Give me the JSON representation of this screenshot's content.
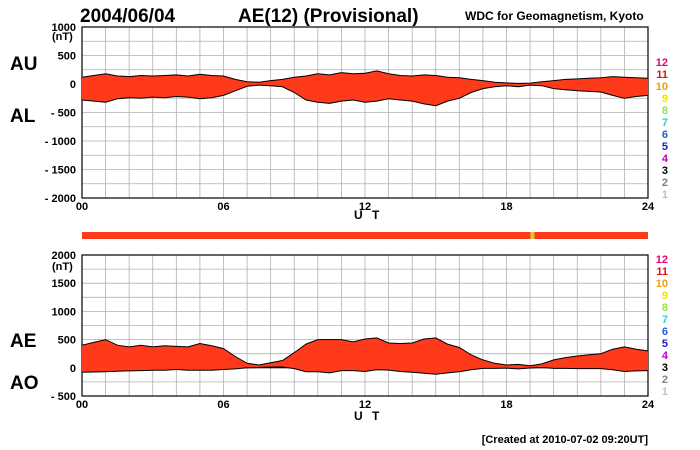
{
  "header": {
    "date": "2004/06/04",
    "title": "AE(12) (Provisional)",
    "source": "WDC for Geomagnetism, Kyoto"
  },
  "footer": {
    "created": "[Created at 2010-07-02 09:20UT]"
  },
  "station_counts": [
    "12",
    "11",
    "10",
    "9",
    "8",
    "7",
    "6",
    "5",
    "4",
    "3",
    "2",
    "1"
  ],
  "station_colors": [
    "#e8007a",
    "#d81414",
    "#f0a000",
    "#e8e800",
    "#90e840",
    "#30d0d0",
    "#2060e0",
    "#2020c0",
    "#c000c0",
    "#000000",
    "#808080",
    "#c0c0c0"
  ],
  "fill_color": "#ff3a1a",
  "coverage_bar": {
    "color": "#ff3a1a",
    "highlight_color": "#d8c830",
    "highlight_hour": 19.1
  },
  "chart_data": [
    {
      "type": "area",
      "panel": "AU/AL",
      "ylabel": "(nT)",
      "xlabel": "U T",
      "upper_label": "AU",
      "lower_label": "AL",
      "xlim": [
        0,
        24
      ],
      "ylim": [
        -2000,
        1000
      ],
      "xticks": [
        "00",
        "06",
        "12",
        "18",
        "24"
      ],
      "yticks": [
        "1000",
        "500",
        "0",
        "- 500",
        "- 1000",
        "- 1500",
        "- 2000"
      ],
      "ytick_values": [
        1000,
        500,
        0,
        -500,
        -1000,
        -1500,
        -2000
      ],
      "x": [
        0,
        0.5,
        1,
        1.5,
        2,
        2.5,
        3,
        3.5,
        4,
        4.5,
        5,
        5.5,
        6,
        6.5,
        7,
        7.5,
        8,
        8.5,
        9,
        9.5,
        10,
        10.5,
        11,
        11.5,
        12,
        12.5,
        13,
        13.5,
        14,
        14.5,
        15,
        15.5,
        16,
        16.5,
        17,
        17.5,
        18,
        18.5,
        19,
        19.5,
        20,
        20.5,
        21,
        21.5,
        22,
        22.5,
        23,
        23.5,
        24
      ],
      "series": [
        {
          "name": "AU",
          "values": [
            120,
            150,
            180,
            140,
            130,
            150,
            140,
            150,
            160,
            140,
            170,
            150,
            140,
            80,
            40,
            30,
            60,
            80,
            120,
            140,
            180,
            160,
            200,
            180,
            190,
            230,
            180,
            150,
            140,
            160,
            150,
            120,
            110,
            80,
            60,
            30,
            20,
            10,
            15,
            40,
            60,
            80,
            90,
            100,
            110,
            130,
            120,
            110,
            100
          ]
        },
        {
          "name": "AL",
          "values": [
            -280,
            -300,
            -320,
            -260,
            -240,
            -250,
            -230,
            -240,
            -220,
            -230,
            -260,
            -240,
            -200,
            -120,
            -40,
            -20,
            -30,
            -50,
            -150,
            -280,
            -320,
            -340,
            -300,
            -280,
            -320,
            -300,
            -260,
            -280,
            -300,
            -350,
            -380,
            -300,
            -250,
            -150,
            -80,
            -50,
            -30,
            -50,
            -20,
            -30,
            -80,
            -100,
            -120,
            -130,
            -140,
            -200,
            -250,
            -220,
            -200
          ]
        }
      ]
    },
    {
      "type": "area",
      "panel": "AE/AO",
      "ylabel": "(nT)",
      "xlabel": "U T",
      "upper_label": "AE",
      "lower_label": "AO",
      "xlim": [
        0,
        24
      ],
      "ylim": [
        -500,
        2000
      ],
      "xticks": [
        "00",
        "06",
        "12",
        "18",
        "24"
      ],
      "yticks": [
        "2000",
        "1500",
        "1000",
        "500",
        "0",
        "- 500"
      ],
      "ytick_values": [
        2000,
        1500,
        1000,
        500,
        0,
        -500
      ],
      "x": [
        0,
        0.5,
        1,
        1.5,
        2,
        2.5,
        3,
        3.5,
        4,
        4.5,
        5,
        5.5,
        6,
        6.5,
        7,
        7.5,
        8,
        8.5,
        9,
        9.5,
        10,
        10.5,
        11,
        11.5,
        12,
        12.5,
        13,
        13.5,
        14,
        14.5,
        15,
        15.5,
        16,
        16.5,
        17,
        17.5,
        18,
        18.5,
        19,
        19.5,
        20,
        20.5,
        21,
        21.5,
        22,
        22.5,
        23,
        23.5,
        24
      ],
      "series": [
        {
          "name": "AE",
          "values": [
            400,
            450,
            500,
            400,
            370,
            400,
            370,
            390,
            380,
            370,
            430,
            390,
            340,
            200,
            80,
            50,
            90,
            130,
            270,
            420,
            500,
            500,
            500,
            460,
            510,
            530,
            440,
            430,
            440,
            510,
            530,
            420,
            360,
            230,
            140,
            80,
            50,
            60,
            35,
            70,
            140,
            180,
            210,
            230,
            250,
            330,
            370,
            330,
            300
          ]
        },
        {
          "name": "AO",
          "values": [
            -80,
            -75,
            -70,
            -60,
            -55,
            -50,
            -45,
            -45,
            -30,
            -45,
            -45,
            -45,
            -30,
            -20,
            0,
            5,
            15,
            15,
            -15,
            -70,
            -70,
            -90,
            -50,
            -50,
            -65,
            -35,
            -40,
            -65,
            -80,
            -95,
            -115,
            -90,
            -70,
            -35,
            -10,
            -10,
            -5,
            -20,
            -3,
            5,
            -10,
            -10,
            -15,
            -15,
            -15,
            -35,
            -65,
            -55,
            -50
          ]
        }
      ]
    }
  ]
}
